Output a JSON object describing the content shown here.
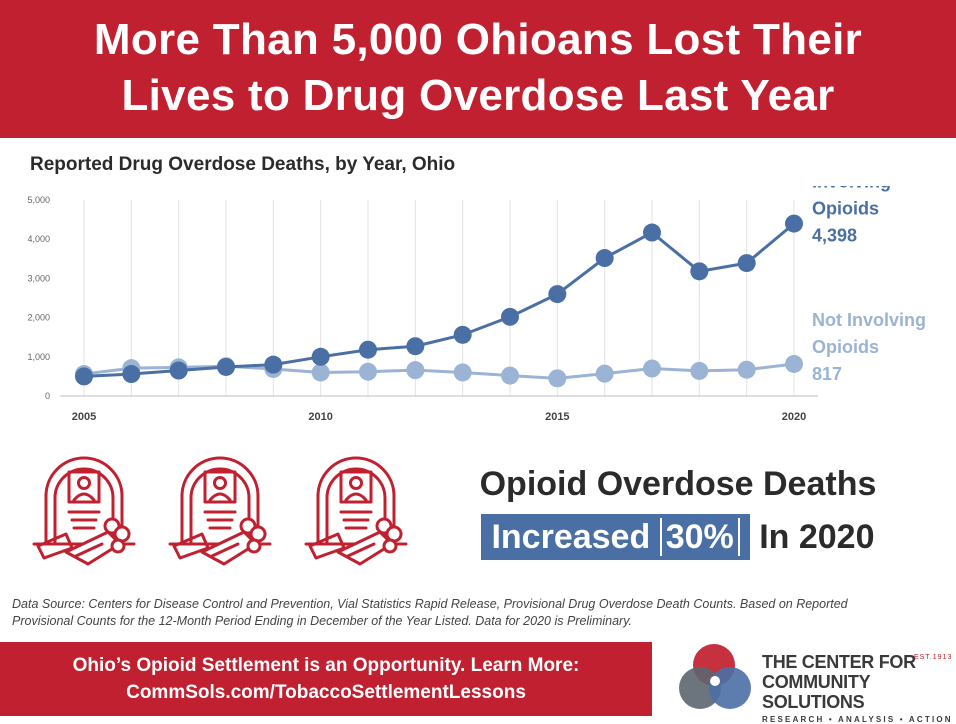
{
  "banner": {
    "line1": "More Than 5,000 Ohioans Lost Their",
    "line2": "Lives to Drug Overdose Last Year"
  },
  "chart_data": {
    "type": "line",
    "title": "Reported Drug Overdose Deaths, by Year, Ohio",
    "xlabel": "",
    "ylabel": "",
    "x": [
      2005,
      2006,
      2007,
      2008,
      2009,
      2010,
      2011,
      2012,
      2013,
      2014,
      2015,
      2016,
      2017,
      2018,
      2019,
      2020
    ],
    "xticks": [
      "2005",
      "2010",
      "2015",
      "2020"
    ],
    "yticks": [
      "0",
      "1,000",
      "2,000",
      "3,000",
      "4,000",
      "5,000"
    ],
    "ylim": [
      0,
      5000
    ],
    "grid": "vertical",
    "series": [
      {
        "name": "Involving Opioids",
        "label_lines": [
          "Involving",
          "Opioids"
        ],
        "end_label": "4,398",
        "color": "#4a6fa5",
        "values": [
          500,
          560,
          650,
          740,
          800,
          1000,
          1180,
          1270,
          1560,
          2020,
          2600,
          3520,
          4170,
          3180,
          3390,
          4398
        ]
      },
      {
        "name": "Not Involving Opioids",
        "label_lines": [
          "Not Involving",
          "Opioids"
        ],
        "end_label": "817",
        "color": "#9bb3d4",
        "values": [
          560,
          710,
          730,
          760,
          690,
          600,
          620,
          660,
          600,
          520,
          450,
          570,
          700,
          640,
          670,
          817
        ]
      }
    ]
  },
  "headline": {
    "line1": "Opioid Overdose Deaths",
    "increased": "Increased",
    "percent": "30%",
    "suffix": "In 2020"
  },
  "source_note": "Data Source: Centers for Disease Control and Prevention, Vial Statistics Rapid Release, Provisional Drug Overdose Death Counts. Based on Reported Provisional Counts for the 12-Month Period Ending in December of the Year Listed. Data for 2020 is Preliminary.",
  "footer": {
    "line1": "Ohio’s Opioid Settlement is an Opportunity. Learn More:",
    "line2": "CommSols.com/TobaccoSettlementLessons"
  },
  "logo": {
    "line1": "THE CENTER FOR",
    "line2": "COMMUNITY SOLUTIONS",
    "tagline": "RESEARCH • ANALYSIS • ACTION",
    "est": "EST.1913"
  },
  "colors": {
    "brand_red": "#c0202f",
    "opioid_blue": "#4a6fa5",
    "non_opioid_blue": "#9bb3d4"
  },
  "icons": [
    "memorial-headstone-icon",
    "memorial-headstone-icon",
    "memorial-headstone-icon"
  ]
}
